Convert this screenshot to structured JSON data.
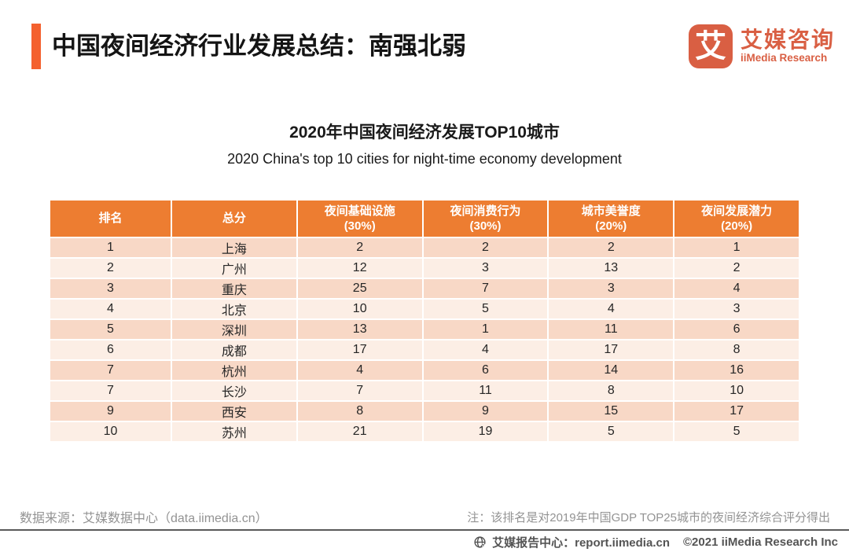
{
  "page": {
    "title": "中国夜间经济行业发展总结：南强北弱"
  },
  "logo": {
    "glyph": "艾",
    "name_cn": "艾媒咨询",
    "name_en": "iiMedia Research"
  },
  "chart_data": {
    "type": "table",
    "title": "2020年中国夜间经济发展TOP10城市",
    "subtitle": "2020 China's top 10 cities for night-time economy development",
    "columns": [
      "排名",
      "总分",
      "夜间基础设施\n(30%)",
      "夜间消费行为\n(30%)",
      "城市美誉度\n(20%)",
      "夜间发展潜力\n(20%)"
    ],
    "rows": [
      [
        "1",
        "上海",
        "2",
        "2",
        "2",
        "1"
      ],
      [
        "2",
        "广州",
        "12",
        "3",
        "13",
        "2"
      ],
      [
        "3",
        "重庆",
        "25",
        "7",
        "3",
        "4"
      ],
      [
        "4",
        "北京",
        "10",
        "5",
        "4",
        "3"
      ],
      [
        "5",
        "深圳",
        "13",
        "1",
        "11",
        "6"
      ],
      [
        "6",
        "成都",
        "17",
        "4",
        "17",
        "8"
      ],
      [
        "7",
        "杭州",
        "4",
        "6",
        "14",
        "16"
      ],
      [
        "7",
        "长沙",
        "7",
        "11",
        "8",
        "10"
      ],
      [
        "9",
        "西安",
        "8",
        "9",
        "15",
        "17"
      ],
      [
        "10",
        "苏州",
        "21",
        "19",
        "5",
        "5"
      ]
    ],
    "layout_hints": {
      "header_background": "#ED7D31",
      "row_color_odd": "#F8D8C6",
      "row_color_even": "#FCEEE5"
    }
  },
  "footer": {
    "source": "数据来源：艾媒数据中心（data.iimedia.cn）",
    "note": "注：该排名是对2019年中国GDP TOP25城市的夜间经济综合评分得出",
    "report_center": "艾媒报告中心：report.iimedia.cn",
    "copyright": "©2021  iiMedia Research  Inc"
  },
  "colors": {
    "accent_orange": "#F4612E",
    "table_header_orange": "#ED7D31",
    "row_pink_dark": "#F8D8C6",
    "row_pink_light": "#FCEEE5",
    "logo_orange": "#D95F43",
    "footer_gray": "#939393",
    "bottom_text_gray": "#545454"
  }
}
